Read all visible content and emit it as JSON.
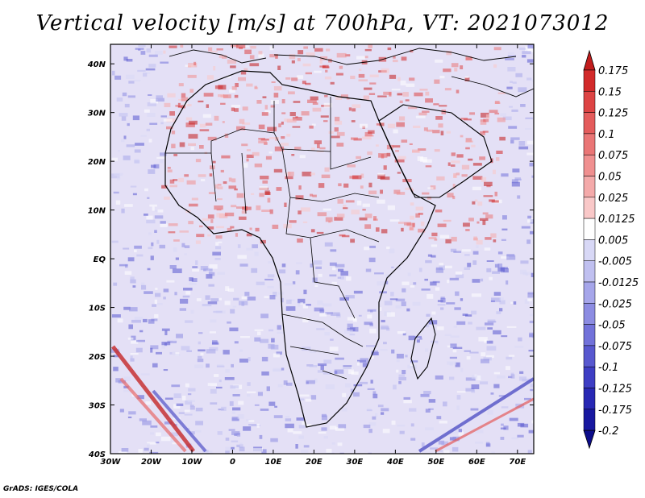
{
  "title": "Vertical velocity [m/s] at 700hPa, VT: 2021073012",
  "footer": "GrADS: IGES/COLA",
  "map": {
    "lat_labels": [
      "40N",
      "30N",
      "20N",
      "10N",
      "EQ",
      "10S",
      "20S",
      "30S",
      "40S"
    ],
    "lon_labels": [
      "30W",
      "20W",
      "10W",
      "0",
      "10E",
      "20E",
      "30E",
      "40E",
      "50E",
      "60E",
      "70E"
    ],
    "lat_range": [
      -40,
      44
    ],
    "lon_range": [
      -30,
      74
    ]
  },
  "colorbar": {
    "labels": [
      "0.175",
      "0.15",
      "0.125",
      "0.1",
      "0.075",
      "0.05",
      "0.025",
      "0.0125",
      "0.005",
      "-0.005",
      "-0.0125",
      "-0.025",
      "-0.05",
      "-0.075",
      "-0.1",
      "-0.125",
      "-0.175",
      "-0.2"
    ],
    "colors": [
      "#c21c1c",
      "#d22a2a",
      "#dd4444",
      "#e45c5c",
      "#ea7676",
      "#f09090",
      "#f4aaaa",
      "#f9c8c8",
      "#ffffff",
      "#d8d8f6",
      "#c0c0f0",
      "#a6a6ea",
      "#8c8ce2",
      "#7272da",
      "#5858cf",
      "#3e3ec4",
      "#2828b4",
      "#1818a0",
      "#0c0c8a"
    ]
  }
}
